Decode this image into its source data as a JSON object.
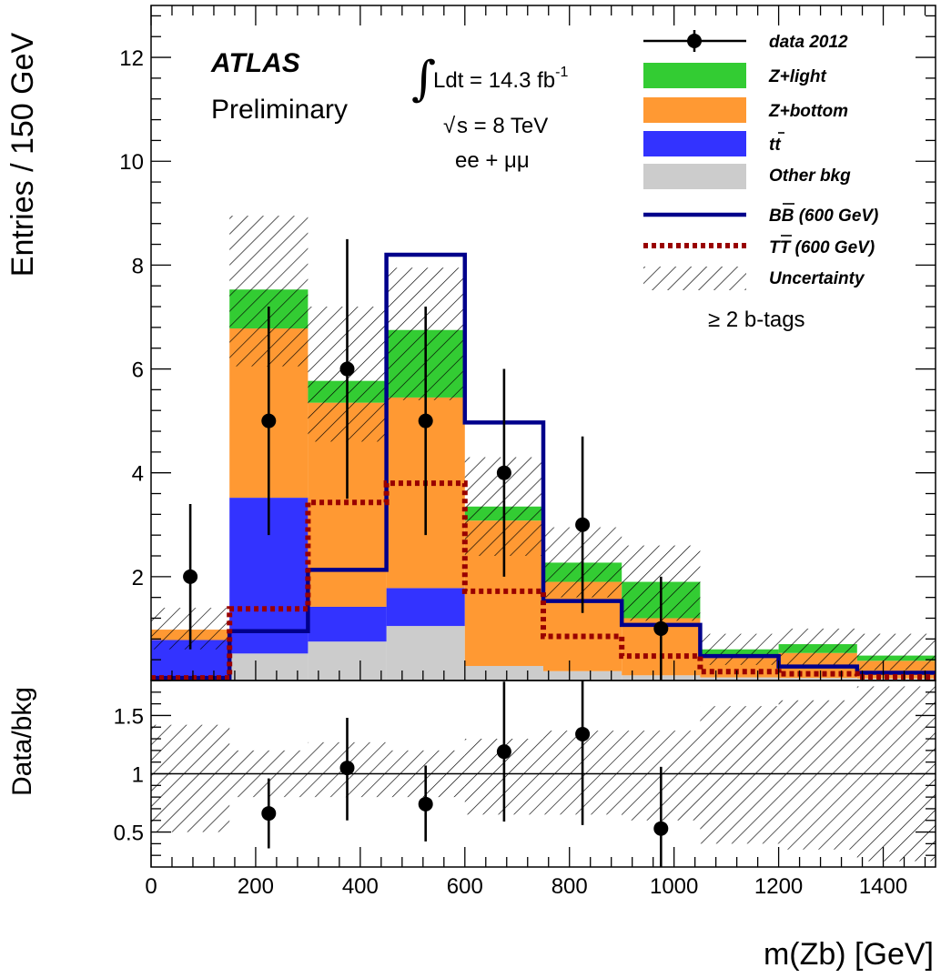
{
  "chart_data": {
    "type": "bar",
    "subtype": "stacked-histogram-with-ratio",
    "x_edges": [
      0,
      150,
      300,
      450,
      600,
      750,
      900,
      1050,
      1200,
      1350,
      1500
    ],
    "xlabel": "m(Zb) [GeV]",
    "ylabel": "Entries / 150 GeV",
    "xlim": [
      0,
      1500
    ],
    "ylim": [
      0,
      13
    ],
    "x_ticks": [
      0,
      200,
      400,
      600,
      800,
      1000,
      1200,
      1400
    ],
    "x_tick_labels": [
      "0",
      "200",
      "400",
      "600",
      "800",
      "1000",
      "1200",
      "1400"
    ],
    "y_ticks": [
      2,
      4,
      6,
      8,
      10,
      12
    ],
    "y_tick_labels": [
      "2",
      "4",
      "6",
      "8",
      "10",
      "12"
    ],
    "stack": [
      {
        "name": "Other bkg",
        "color": "#cccccc",
        "values": [
          0.08,
          0.52,
          0.75,
          1.05,
          0.28,
          0.18,
          0.1,
          0.06,
          0.05,
          0.04
        ]
      },
      {
        "name": "t̄t",
        "color": "#3333ff",
        "values": [
          0.7,
          3.0,
          0.67,
          0.73,
          0.0,
          0.0,
          0.0,
          0.0,
          0.0,
          0.0
        ]
      },
      {
        "name": "Z+bottom",
        "color": "#ff9933",
        "values": [
          0.2,
          3.26,
          3.93,
          3.67,
          2.8,
          1.72,
          1.1,
          0.44,
          0.48,
          0.34
        ]
      },
      {
        "name": "Z+light",
        "color": "#33cc33",
        "values": [
          0.0,
          0.75,
          0.42,
          1.3,
          0.27,
          0.37,
          0.7,
          0.1,
          0.17,
          0.1
        ]
      }
    ],
    "uncertainty_band": {
      "name": "Uncertainty",
      "low": [
        0.6,
        6.05,
        4.6,
        5.4,
        2.4,
        1.6,
        1.15,
        0.3,
        0.3,
        0.2
      ],
      "high": [
        1.4,
        8.95,
        7.2,
        7.95,
        4.3,
        2.95,
        2.6,
        0.9,
        1.0,
        0.9
      ]
    },
    "signals": [
      {
        "name": "B̄B (600 GeV)",
        "label_main": "BB",
        "label_suffix": " (600 GeV)",
        "color": "#00008b",
        "style": "solid",
        "values": [
          0.05,
          0.95,
          2.13,
          8.2,
          4.97,
          1.53,
          1.07,
          0.47,
          0.27,
          0.15
        ]
      },
      {
        "name": "T̄T (600 GeV)",
        "label_main": "TT",
        "label_suffix": " (600 GeV)",
        "color": "#990000",
        "style": "dotted",
        "values": [
          0.05,
          1.38,
          3.43,
          3.8,
          1.72,
          0.85,
          0.47,
          0.17,
          0.13,
          0.07
        ]
      }
    ],
    "data": {
      "name": "data 2012",
      "x": [
        75,
        225,
        375,
        525,
        675,
        825,
        975
      ],
      "y": [
        2,
        5,
        6,
        5,
        4,
        3,
        1
      ],
      "err_low": [
        1.4,
        2.2,
        2.5,
        2.2,
        2.0,
        1.7,
        1.0
      ],
      "err_high": [
        1.4,
        2.2,
        2.5,
        2.2,
        2.0,
        1.7,
        1.0
      ]
    },
    "ratio": {
      "ylabel": "Data/bkg",
      "ylim": [
        0.2,
        1.8
      ],
      "y_ticks": [
        0.5,
        1,
        1.5
      ],
      "y_tick_labels": [
        "0.5",
        "1",
        "1.5"
      ],
      "reference": 1,
      "x": [
        225,
        375,
        525,
        675,
        825,
        975
      ],
      "y": [
        0.66,
        1.05,
        0.74,
        1.19,
        1.34,
        0.53
      ],
      "err_low": [
        0.3,
        0.45,
        0.32,
        0.6,
        0.78,
        0.53
      ],
      "err_high": [
        0.3,
        0.43,
        0.33,
        0.6,
        0.78,
        0.53
      ],
      "band_low": [
        0.5,
        0.8,
        0.8,
        0.8,
        0.65,
        0.65,
        0.6,
        0.4,
        0.35,
        0.25
      ],
      "band_high": [
        1.42,
        1.2,
        1.27,
        1.2,
        1.3,
        1.37,
        1.37,
        1.58,
        1.63,
        1.75
      ]
    },
    "annotations": {
      "experiment": "ATLAS",
      "status": "Preliminary",
      "lumi": "Ldt = 14.3 fb",
      "lumi_exp": "-1",
      "energy": "s = 8 TeV",
      "channel": "ee + μμ",
      "selection": "≥ 2 b-tags",
      "integral_symbol": "∫",
      "sqrt_symbol": "√"
    },
    "legend": {
      "position": "top-right",
      "data": "data 2012",
      "zlight": "Z+light",
      "zbottom": "Z+bottom",
      "tt": "tt",
      "other": "Other bkg",
      "uncertainty": "Uncertainty"
    }
  }
}
